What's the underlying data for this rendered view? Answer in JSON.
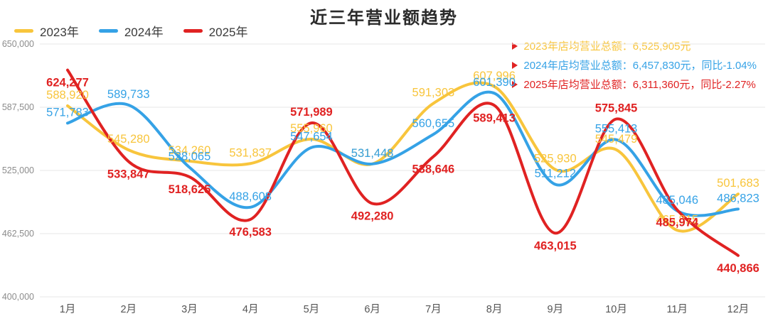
{
  "title": "近三年营业额趋势",
  "legend": {
    "items": [
      {
        "label": "2023年",
        "color": "#f8c53c"
      },
      {
        "label": "2024年",
        "color": "#35a2e6"
      },
      {
        "label": "2025年",
        "color": "#e02222"
      }
    ]
  },
  "annotations": [
    {
      "text": "2023年店均营业总额：6,525,905元",
      "color": "#f8c53c"
    },
    {
      "text": "2024年店均营业总额：6,457,830元，同比-1.04%",
      "color": "#35a2e6"
    },
    {
      "text": "2025年店均营业总额：6,311,360元，同比-2.27%",
      "color": "#e02222"
    }
  ],
  "chart_data": {
    "type": "line",
    "smooth": true,
    "title": "近三年营业额趋势",
    "xlabel": "",
    "ylabel": "",
    "categories": [
      "1月",
      "2月",
      "3月",
      "4月",
      "5月",
      "6月",
      "7月",
      "8月",
      "9月",
      "10月",
      "11月",
      "12月"
    ],
    "series": [
      {
        "name": "2023年",
        "color": "#f8c53c",
        "values": [
          588920,
          545280,
          534260,
          531837,
          555960,
          531442,
          591303,
          607996,
          525930,
          545479,
          465815,
          501683
        ],
        "total_label": "6,525,905"
      },
      {
        "name": "2024年",
        "color": "#35a2e6",
        "values": [
          571783,
          589733,
          528065,
          488608,
          547654,
          531448,
          560655,
          601390,
          511212,
          555413,
          485046,
          486823
        ],
        "total_label": "6,457,830",
        "yoy": "-1.04%"
      },
      {
        "name": "2025年",
        "color": "#e02222",
        "values": [
          624277,
          533847,
          518625,
          476583,
          571989,
          492280,
          538646,
          589413,
          463015,
          575845,
          485974,
          440866
        ],
        "total_label": "6,311,360",
        "yoy": "-2.27%"
      }
    ],
    "y_ticks": [
      650000,
      587500,
      525000,
      462500,
      400000
    ],
    "ylim": [
      400000,
      650000
    ],
    "grid": true,
    "legend_position": "top-left",
    "annotations_position": "top-right"
  }
}
